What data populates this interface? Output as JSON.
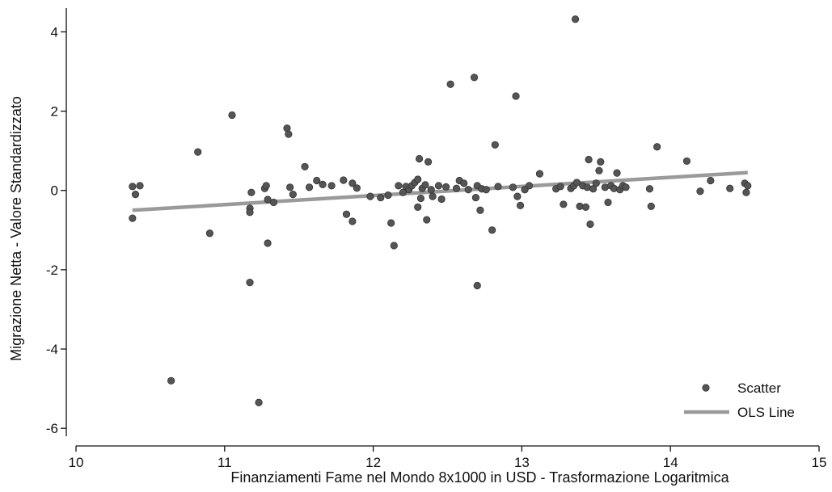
{
  "chart_data": {
    "type": "scatter",
    "title": "",
    "xlabel": "Finanziamenti Fame nel Mondo 8x1000 in USD - Trasformazione Logaritmica",
    "ylabel": "Migrazione Netta - Valore Standardizzato",
    "xlim": [
      10,
      15
    ],
    "ylim": [
      -6.2,
      4.6
    ],
    "x_ticks": [
      10,
      11,
      12,
      13,
      14,
      15
    ],
    "y_ticks": [
      -6,
      -4,
      -2,
      0,
      2,
      4
    ],
    "x_tick_labels": [
      "10",
      "11",
      "12",
      "13",
      "14",
      "15"
    ],
    "y_tick_labels": [
      "-6",
      "-4",
      "-2",
      "0",
      "2",
      "4"
    ],
    "grid": false,
    "legend_position": "bottom-right",
    "colors": {
      "scatter": "#555555",
      "ols_line": "#9a9a9a",
      "axis": "#111111"
    },
    "series": [
      {
        "name": "Scatter",
        "kind": "scatter",
        "points": [
          [
            10.38,
            0.1
          ],
          [
            10.4,
            -0.1
          ],
          [
            10.43,
            0.12
          ],
          [
            10.38,
            -0.7
          ],
          [
            10.64,
            -4.8
          ],
          [
            10.82,
            0.97
          ],
          [
            10.9,
            -1.08
          ],
          [
            11.05,
            1.9
          ],
          [
            11.17,
            -0.45
          ],
          [
            11.17,
            -0.55
          ],
          [
            11.18,
            -0.05
          ],
          [
            11.17,
            -2.32
          ],
          [
            11.23,
            -5.35
          ],
          [
            11.27,
            0.05
          ],
          [
            11.28,
            0.12
          ],
          [
            11.29,
            -0.23
          ],
          [
            11.29,
            -1.33
          ],
          [
            11.33,
            -0.3
          ],
          [
            11.42,
            1.57
          ],
          [
            11.43,
            1.42
          ],
          [
            11.44,
            0.08
          ],
          [
            11.46,
            -0.1
          ],
          [
            11.54,
            0.6
          ],
          [
            11.57,
            0.08
          ],
          [
            11.62,
            0.25
          ],
          [
            11.66,
            0.15
          ],
          [
            11.72,
            0.12
          ],
          [
            11.8,
            0.26
          ],
          [
            11.82,
            -0.6
          ],
          [
            11.86,
            -0.78
          ],
          [
            11.86,
            0.18
          ],
          [
            11.89,
            0.06
          ],
          [
            11.98,
            -0.15
          ],
          [
            12.05,
            -0.18
          ],
          [
            12.1,
            -0.12
          ],
          [
            12.12,
            -0.82
          ],
          [
            12.14,
            -1.39
          ],
          [
            12.17,
            0.12
          ],
          [
            12.2,
            -0.05
          ],
          [
            12.22,
            0.1
          ],
          [
            12.24,
            0.02
          ],
          [
            12.26,
            0.12
          ],
          [
            12.28,
            0.2
          ],
          [
            12.3,
            0.28
          ],
          [
            12.3,
            -0.42
          ],
          [
            12.31,
            0.8
          ],
          [
            12.32,
            -0.2
          ],
          [
            12.33,
            0.05
          ],
          [
            12.35,
            0.14
          ],
          [
            12.36,
            -0.74
          ],
          [
            12.37,
            0.72
          ],
          [
            12.39,
            0.02
          ],
          [
            12.4,
            -0.15
          ],
          [
            12.44,
            0.12
          ],
          [
            12.46,
            -0.22
          ],
          [
            12.49,
            0.09
          ],
          [
            12.52,
            2.68
          ],
          [
            12.56,
            0.05
          ],
          [
            12.58,
            0.25
          ],
          [
            12.61,
            0.18
          ],
          [
            12.64,
            0.02
          ],
          [
            12.68,
            2.85
          ],
          [
            12.69,
            -0.18
          ],
          [
            12.7,
            -2.4
          ],
          [
            12.7,
            0.12
          ],
          [
            12.72,
            -0.5
          ],
          [
            12.73,
            0.04
          ],
          [
            12.76,
            0.02
          ],
          [
            12.8,
            -1.0
          ],
          [
            12.82,
            1.15
          ],
          [
            12.84,
            0.1
          ],
          [
            12.94,
            0.08
          ],
          [
            12.96,
            2.38
          ],
          [
            12.97,
            -0.15
          ],
          [
            12.99,
            -0.38
          ],
          [
            13.02,
            0.02
          ],
          [
            13.05,
            0.12
          ],
          [
            13.12,
            0.42
          ],
          [
            13.23,
            0.04
          ],
          [
            13.26,
            0.1
          ],
          [
            13.28,
            -0.35
          ],
          [
            13.33,
            0.05
          ],
          [
            13.35,
            0.12
          ],
          [
            13.36,
            4.32
          ],
          [
            13.37,
            0.2
          ],
          [
            13.39,
            -0.4
          ],
          [
            13.41,
            0.12
          ],
          [
            13.43,
            -0.42
          ],
          [
            13.44,
            0.08
          ],
          [
            13.45,
            0.78
          ],
          [
            13.46,
            -0.85
          ],
          [
            13.48,
            0.04
          ],
          [
            13.5,
            0.18
          ],
          [
            13.52,
            0.5
          ],
          [
            13.53,
            0.72
          ],
          [
            13.56,
            0.08
          ],
          [
            13.58,
            -0.3
          ],
          [
            13.6,
            0.12
          ],
          [
            13.62,
            0.05
          ],
          [
            13.64,
            0.44
          ],
          [
            13.66,
            0.02
          ],
          [
            13.68,
            0.12
          ],
          [
            13.7,
            0.08
          ],
          [
            13.86,
            0.04
          ],
          [
            13.87,
            -0.4
          ],
          [
            13.91,
            1.1
          ],
          [
            14.11,
            0.74
          ],
          [
            14.2,
            -0.02
          ],
          [
            14.27,
            0.25
          ],
          [
            14.4,
            0.05
          ],
          [
            14.5,
            0.18
          ],
          [
            14.51,
            -0.05
          ],
          [
            14.52,
            0.12
          ]
        ]
      },
      {
        "name": "OLS Line",
        "kind": "line",
        "points": [
          [
            10.38,
            -0.5
          ],
          [
            14.52,
            0.45
          ]
        ]
      }
    ]
  }
}
